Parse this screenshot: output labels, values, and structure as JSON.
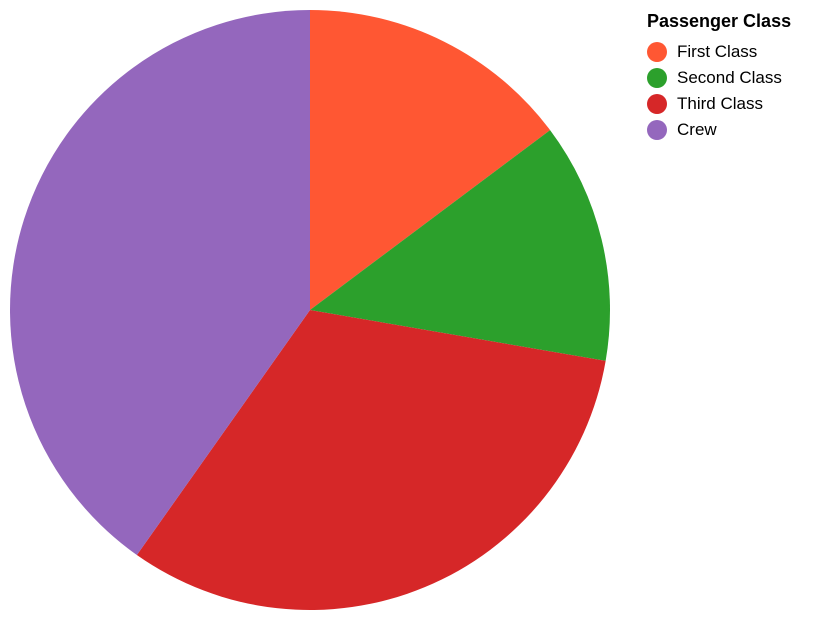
{
  "chart_data": {
    "type": "pie",
    "legend_title": "Passenger Class",
    "legend_position": "top-right",
    "categories": [
      "First Class",
      "Second Class",
      "Third Class",
      "Crew"
    ],
    "values": [
      325,
      285,
      706,
      885
    ],
    "colors": [
      "#ff5733",
      "#2ca02c",
      "#d62728",
      "#9467bd"
    ]
  }
}
